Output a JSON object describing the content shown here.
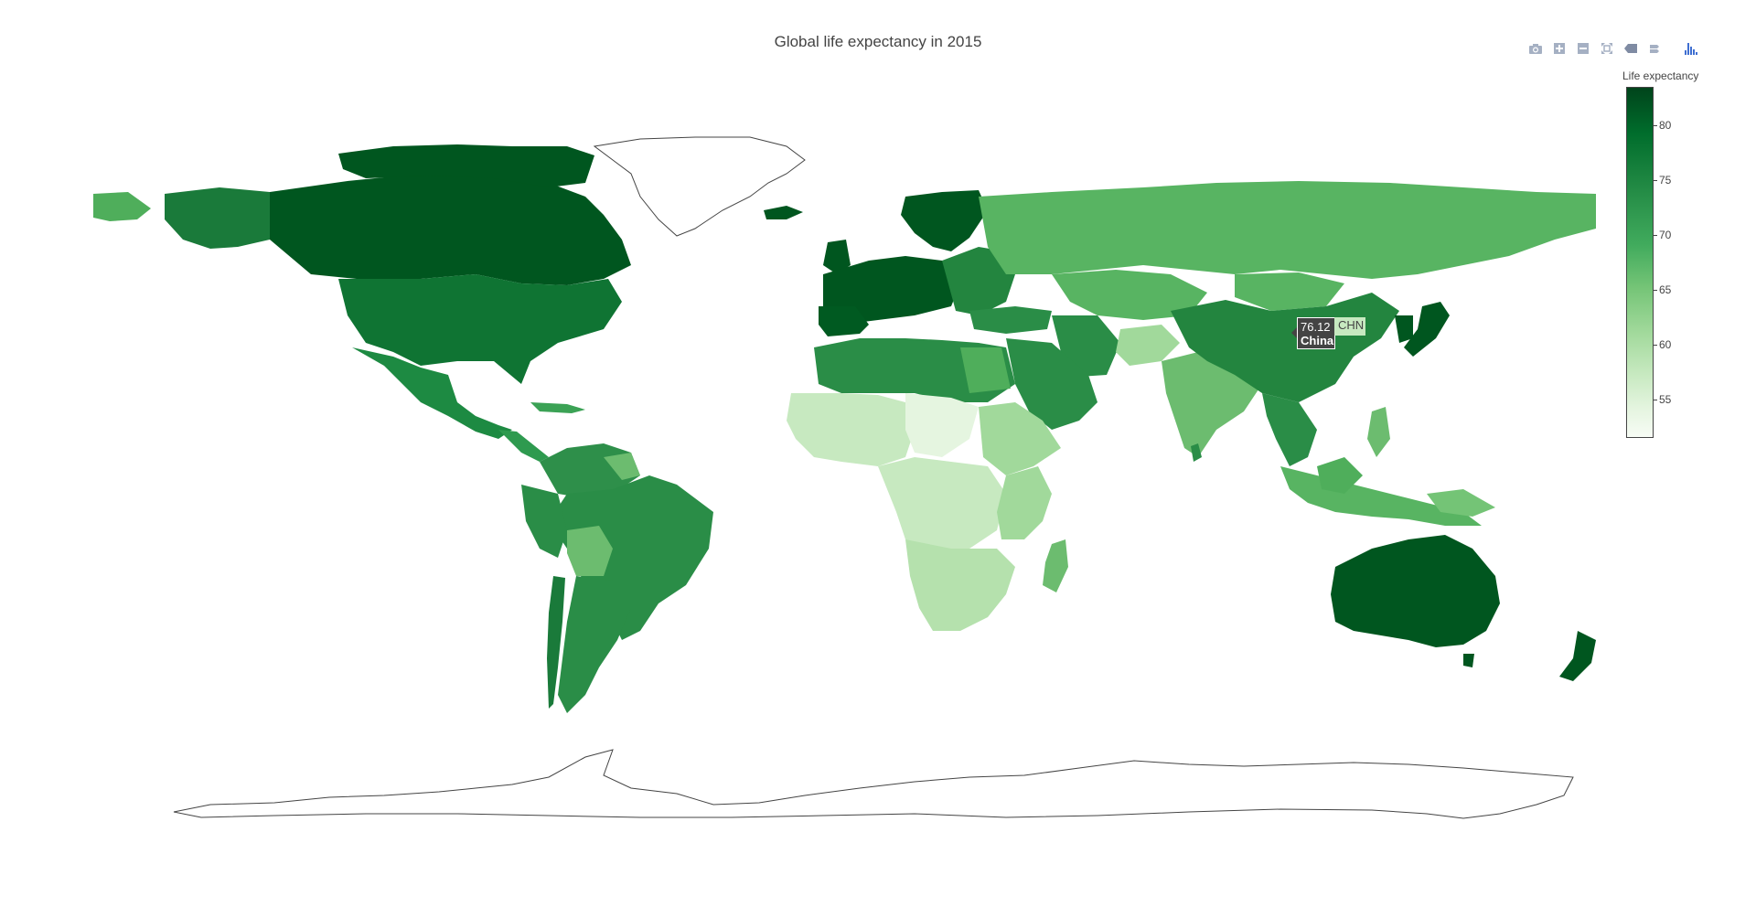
{
  "chart_data": {
    "type": "choropleth",
    "title": "Global life expectancy in 2015",
    "colorbar": {
      "title": "Life expectancy",
      "ticks": [
        80,
        75,
        70,
        65,
        60,
        55
      ],
      "range": [
        51.5,
        83.5
      ],
      "colorscale": "Greens"
    },
    "hover": {
      "value": "76.12",
      "country": "China",
      "code": "CHN"
    },
    "regions": [
      {
        "name": "Canada",
        "value": 82
      },
      {
        "name": "United States",
        "value": 79
      },
      {
        "name": "Mexico",
        "value": 77
      },
      {
        "name": "Brazil",
        "value": 75
      },
      {
        "name": "Argentina",
        "value": 76
      },
      {
        "name": "Russia",
        "value": 71
      },
      {
        "name": "China",
        "value": 76.12
      },
      {
        "name": "India",
        "value": 68
      },
      {
        "name": "Australia",
        "value": 83
      },
      {
        "name": "Japan",
        "value": 84
      },
      {
        "name": "Western Europe",
        "value": 82
      },
      {
        "name": "North Africa",
        "value": 74
      },
      {
        "name": "Central Africa",
        "value": 55
      },
      {
        "name": "Southern Africa",
        "value": 62
      },
      {
        "name": "Madagascar",
        "value": 66
      },
      {
        "name": "Kazakhstan",
        "value": 70
      },
      {
        "name": "Southeast Asia",
        "value": 72
      },
      {
        "name": "New Zealand",
        "value": 82
      }
    ]
  },
  "modebar": {
    "buttons": [
      "camera-icon",
      "zoom-in-icon",
      "zoom-out-icon",
      "autoscale-icon",
      "hover-closest-icon",
      "hover-compare-icon",
      "plotly-logo-icon"
    ]
  }
}
